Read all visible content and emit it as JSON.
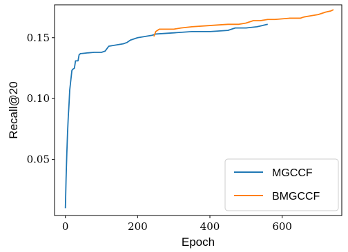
{
  "chart_data": {
    "type": "line",
    "xlabel": "Epoch",
    "ylabel": "Recall@20",
    "xlim": [
      -30,
      765
    ],
    "ylim": [
      0.004,
      0.177
    ],
    "xticks": [
      0,
      200,
      400,
      600
    ],
    "yticks": [
      0.05,
      0.1,
      0.15
    ],
    "xtick_labels": [
      "0",
      "200",
      "400",
      "600"
    ],
    "ytick_labels": [
      "0.05",
      "0.10",
      "0.15"
    ],
    "grid": false,
    "legend_position": "lower-right",
    "series": [
      {
        "name": "MGCCF",
        "color": "#1f77b4",
        "x": [
          0,
          2,
          4,
          6,
          8,
          10,
          12,
          15,
          18,
          20,
          25,
          28,
          30,
          35,
          38,
          42,
          45,
          60,
          80,
          100,
          110,
          115,
          120,
          140,
          160,
          170,
          180,
          200,
          220,
          240,
          250,
          300,
          350,
          400,
          450,
          460,
          470,
          500,
          530,
          545,
          560
        ],
        "y": [
          0.01,
          0.035,
          0.055,
          0.072,
          0.085,
          0.095,
          0.107,
          0.115,
          0.123,
          0.124,
          0.125,
          0.131,
          0.131,
          0.131,
          0.136,
          0.137,
          0.137,
          0.1375,
          0.138,
          0.138,
          0.139,
          0.141,
          0.143,
          0.144,
          0.145,
          0.146,
          0.148,
          0.15,
          0.151,
          0.152,
          0.153,
          0.154,
          0.155,
          0.155,
          0.156,
          0.157,
          0.158,
          0.158,
          0.159,
          0.16,
          0.161
        ]
      },
      {
        "name": "BMGCCF",
        "color": "#ff7f0e",
        "x": [
          245,
          250,
          255,
          260,
          300,
          320,
          350,
          400,
          450,
          480,
          500,
          510,
          520,
          540,
          560,
          580,
          600,
          620,
          650,
          660,
          680,
          700,
          720,
          735,
          742
        ],
        "y": [
          0.151,
          0.155,
          0.156,
          0.157,
          0.157,
          0.158,
          0.159,
          0.16,
          0.161,
          0.161,
          0.162,
          0.163,
          0.164,
          0.164,
          0.165,
          0.165,
          0.1655,
          0.166,
          0.166,
          0.167,
          0.168,
          0.169,
          0.171,
          0.172,
          0.173
        ]
      }
    ]
  }
}
